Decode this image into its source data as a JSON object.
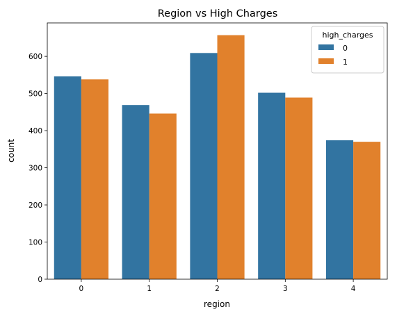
{
  "chart_data": {
    "type": "bar",
    "title": "Region vs High Charges",
    "xlabel": "region",
    "ylabel": "count",
    "categories": [
      "0",
      "1",
      "2",
      "3",
      "4"
    ],
    "yticks": [
      0,
      100,
      200,
      300,
      400,
      500,
      600
    ],
    "ylim": [
      0,
      690
    ],
    "grid": false,
    "legend": {
      "title": "high_charges",
      "placement": "top-right"
    },
    "series": [
      {
        "name": "0",
        "color": "#3274a1",
        "values": [
          546,
          469,
          609,
          502,
          374
        ]
      },
      {
        "name": "1",
        "color": "#e1812c",
        "values": [
          538,
          446,
          657,
          489,
          370
        ]
      }
    ]
  }
}
